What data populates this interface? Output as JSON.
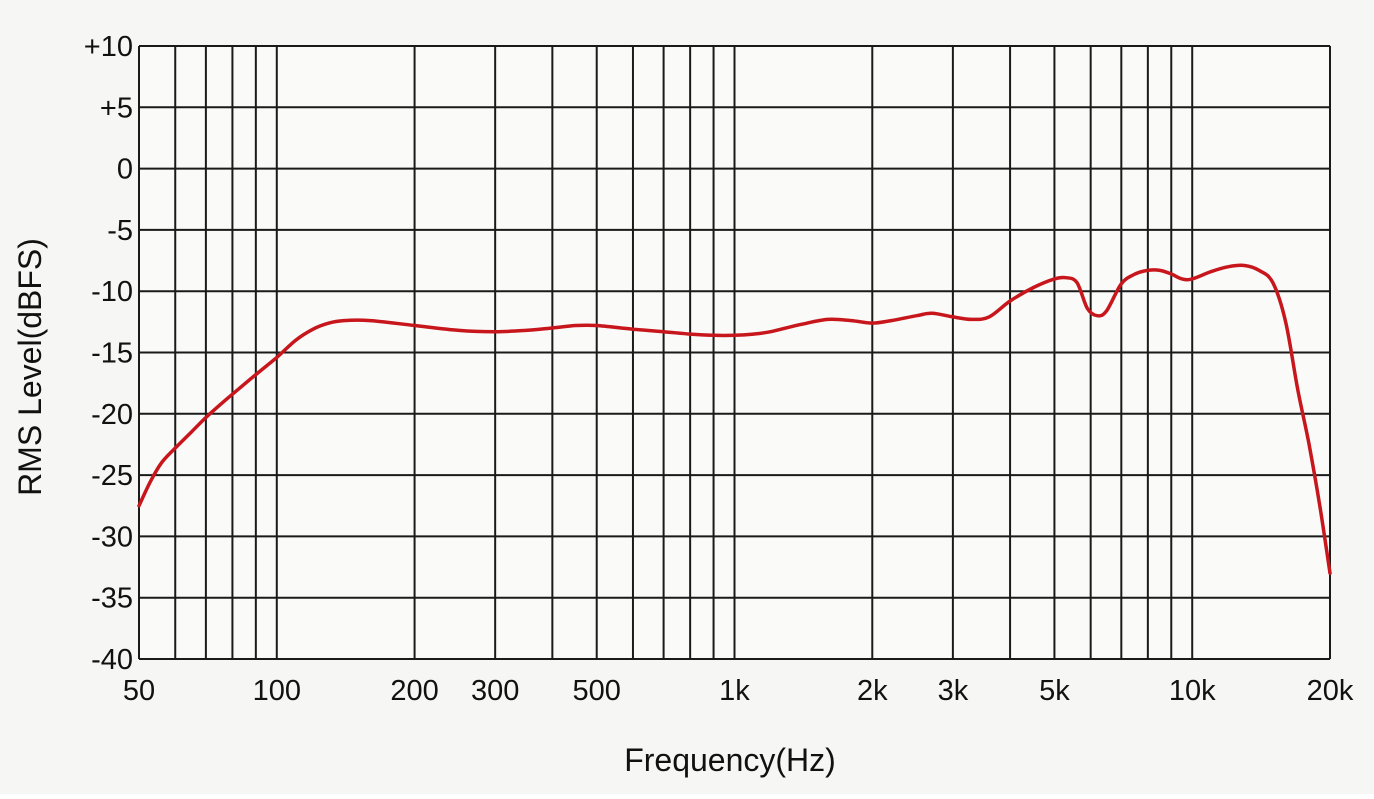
{
  "chart_data": {
    "type": "line",
    "title": "",
    "xlabel": "Frequency(Hz)",
    "ylabel": "RMS Level(dBFS)",
    "xscale": "log",
    "xlim": [
      50,
      20000
    ],
    "ylim": [
      -40,
      10
    ],
    "grid": true,
    "legend": "none",
    "x_ticks": [
      {
        "value": 50,
        "label": "50"
      },
      {
        "value": 100,
        "label": "100"
      },
      {
        "value": 200,
        "label": "200"
      },
      {
        "value": 300,
        "label": "300"
      },
      {
        "value": 500,
        "label": "500"
      },
      {
        "value": 1000,
        "label": "1k"
      },
      {
        "value": 2000,
        "label": "2k"
      },
      {
        "value": 3000,
        "label": "3k"
      },
      {
        "value": 5000,
        "label": "5k"
      },
      {
        "value": 10000,
        "label": "10k"
      },
      {
        "value": 20000,
        "label": "20k"
      }
    ],
    "x_grid": [
      50,
      60,
      70,
      80,
      90,
      100,
      200,
      300,
      400,
      500,
      600,
      700,
      800,
      900,
      1000,
      2000,
      3000,
      4000,
      5000,
      6000,
      7000,
      8000,
      9000,
      10000,
      20000
    ],
    "y_ticks": [
      {
        "value": 10,
        "label": "+10"
      },
      {
        "value": 5,
        "label": "+5"
      },
      {
        "value": 0,
        "label": "0"
      },
      {
        "value": -5,
        "label": "-5"
      },
      {
        "value": -10,
        "label": "-10"
      },
      {
        "value": -15,
        "label": "-15"
      },
      {
        "value": -20,
        "label": "-20"
      },
      {
        "value": -25,
        "label": "-25"
      },
      {
        "value": -30,
        "label": "-30"
      },
      {
        "value": -35,
        "label": "-35"
      },
      {
        "value": -40,
        "label": "-40"
      }
    ],
    "series": [
      {
        "color": "#c8161d",
        "points": [
          [
            50,
            -27.5
          ],
          [
            53,
            -25.5
          ],
          [
            56,
            -24.0
          ],
          [
            60,
            -22.8
          ],
          [
            65,
            -21.5
          ],
          [
            70,
            -20.3
          ],
          [
            75,
            -19.3
          ],
          [
            80,
            -18.4
          ],
          [
            90,
            -16.8
          ],
          [
            100,
            -15.4
          ],
          [
            110,
            -14.0
          ],
          [
            120,
            -13.1
          ],
          [
            130,
            -12.6
          ],
          [
            140,
            -12.4
          ],
          [
            160,
            -12.4
          ],
          [
            200,
            -12.8
          ],
          [
            250,
            -13.2
          ],
          [
            300,
            -13.3
          ],
          [
            350,
            -13.2
          ],
          [
            400,
            -13.0
          ],
          [
            450,
            -12.8
          ],
          [
            500,
            -12.8
          ],
          [
            600,
            -13.1
          ],
          [
            700,
            -13.3
          ],
          [
            800,
            -13.5
          ],
          [
            900,
            -13.6
          ],
          [
            1000,
            -13.6
          ],
          [
            1100,
            -13.5
          ],
          [
            1200,
            -13.3
          ],
          [
            1400,
            -12.7
          ],
          [
            1600,
            -12.3
          ],
          [
            1800,
            -12.4
          ],
          [
            2000,
            -12.6
          ],
          [
            2200,
            -12.4
          ],
          [
            2500,
            -12.0
          ],
          [
            2700,
            -11.8
          ],
          [
            3000,
            -12.1
          ],
          [
            3300,
            -12.3
          ],
          [
            3600,
            -12.1
          ],
          [
            4000,
            -10.8
          ],
          [
            4500,
            -9.7
          ],
          [
            5000,
            -9.0
          ],
          [
            5300,
            -8.9
          ],
          [
            5600,
            -9.3
          ],
          [
            5900,
            -11.4
          ],
          [
            6200,
            -12.0
          ],
          [
            6500,
            -11.6
          ],
          [
            7000,
            -9.4
          ],
          [
            7500,
            -8.6
          ],
          [
            8000,
            -8.3
          ],
          [
            8500,
            -8.3
          ],
          [
            9000,
            -8.6
          ],
          [
            9500,
            -9.0
          ],
          [
            10000,
            -9.0
          ],
          [
            11000,
            -8.4
          ],
          [
            12000,
            -8.0
          ],
          [
            13000,
            -7.9
          ],
          [
            14000,
            -8.3
          ],
          [
            15000,
            -9.3
          ],
          [
            16000,
            -12.5
          ],
          [
            17000,
            -18.0
          ],
          [
            18000,
            -22.5
          ],
          [
            19000,
            -27.5
          ],
          [
            20000,
            -33.0
          ]
        ]
      }
    ]
  }
}
